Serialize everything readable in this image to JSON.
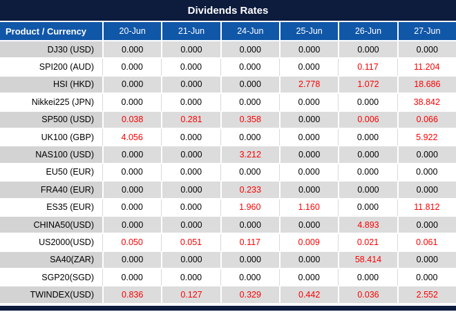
{
  "title": "Dividends Rates",
  "colors": {
    "title_bar_bg": "#0D1B3D",
    "header_bg": "#1157A8",
    "stripe_bg": "#DCDCDC",
    "stripe_product_bg": "#D3D3D3",
    "value_red": "#FA0000",
    "text_black": "#000000"
  },
  "table": {
    "header": {
      "product_label": "Product / Currency",
      "dates": [
        "20-Jun",
        "21-Jun",
        "24-Jun",
        "25-Jun",
        "26-Jun",
        "27-Jun"
      ]
    },
    "rows": [
      {
        "product": "DJ30 (USD)",
        "values": [
          "0.000",
          "0.000",
          "0.000",
          "0.000",
          "0.000",
          "0.000"
        ]
      },
      {
        "product": "SPI200 (AUD)",
        "values": [
          "0.000",
          "0.000",
          "0.000",
          "0.000",
          "0.117",
          "11.204"
        ]
      },
      {
        "product": "HSI (HKD)",
        "values": [
          "0.000",
          "0.000",
          "0.000",
          "2.778",
          "1.072",
          "18.686"
        ]
      },
      {
        "product": "Nikkei225 (JPN)",
        "values": [
          "0.000",
          "0.000",
          "0.000",
          "0.000",
          "0.000",
          "38.842"
        ]
      },
      {
        "product": "SP500 (USD)",
        "values": [
          "0.038",
          "0.281",
          "0.358",
          "0.000",
          "0.006",
          "0.066"
        ]
      },
      {
        "product": "UK100 (GBP)",
        "values": [
          "4.056",
          "0.000",
          "0.000",
          "0.000",
          "0.000",
          "5.922"
        ]
      },
      {
        "product": "NAS100 (USD)",
        "values": [
          "0.000",
          "0.000",
          "3.212",
          "0.000",
          "0.000",
          "0.000"
        ]
      },
      {
        "product": "EU50 (EUR)",
        "values": [
          "0.000",
          "0.000",
          "0.000",
          "0.000",
          "0.000",
          "0.000"
        ]
      },
      {
        "product": "FRA40 (EUR)",
        "values": [
          "0.000",
          "0.000",
          "0.233",
          "0.000",
          "0.000",
          "0.000"
        ]
      },
      {
        "product": "ES35 (EUR)",
        "values": [
          "0.000",
          "0.000",
          "1.960",
          "1.160",
          "0.000",
          "11.812"
        ]
      },
      {
        "product": "CHINA50(USD)",
        "values": [
          "0.000",
          "0.000",
          "0.000",
          "0.000",
          "4.893",
          "0.000"
        ]
      },
      {
        "product": "US2000(USD)",
        "values": [
          "0.050",
          "0.051",
          "0.117",
          "0.009",
          "0.021",
          "0.061"
        ]
      },
      {
        "product": "SA40(ZAR)",
        "values": [
          "0.000",
          "0.000",
          "0.000",
          "0.000",
          "58.414",
          "0.000"
        ]
      },
      {
        "product": "SGP20(SGD)",
        "values": [
          "0.000",
          "0.000",
          "0.000",
          "0.000",
          "0.000",
          "0.000"
        ]
      },
      {
        "product": "TWINDEX(USD)",
        "values": [
          "0.836",
          "0.127",
          "0.329",
          "0.442",
          "0.036",
          "2.552"
        ]
      }
    ]
  },
  "chart_data": {
    "type": "table",
    "title": "Dividends Rates",
    "categories": [
      "20-Jun",
      "21-Jun",
      "24-Jun",
      "25-Jun",
      "26-Jun",
      "27-Jun"
    ],
    "series": [
      {
        "name": "DJ30 (USD)",
        "values": [
          0.0,
          0.0,
          0.0,
          0.0,
          0.0,
          0.0
        ]
      },
      {
        "name": "SPI200 (AUD)",
        "values": [
          0.0,
          0.0,
          0.0,
          0.0,
          0.117,
          11.204
        ]
      },
      {
        "name": "HSI (HKD)",
        "values": [
          0.0,
          0.0,
          0.0,
          2.778,
          1.072,
          18.686
        ]
      },
      {
        "name": "Nikkei225 (JPN)",
        "values": [
          0.0,
          0.0,
          0.0,
          0.0,
          0.0,
          38.842
        ]
      },
      {
        "name": "SP500 (USD)",
        "values": [
          0.038,
          0.281,
          0.358,
          0.0,
          0.006,
          0.066
        ]
      },
      {
        "name": "UK100 (GBP)",
        "values": [
          4.056,
          0.0,
          0.0,
          0.0,
          0.0,
          5.922
        ]
      },
      {
        "name": "NAS100 (USD)",
        "values": [
          0.0,
          0.0,
          3.212,
          0.0,
          0.0,
          0.0
        ]
      },
      {
        "name": "EU50 (EUR)",
        "values": [
          0.0,
          0.0,
          0.0,
          0.0,
          0.0,
          0.0
        ]
      },
      {
        "name": "FRA40 (EUR)",
        "values": [
          0.0,
          0.0,
          0.233,
          0.0,
          0.0,
          0.0
        ]
      },
      {
        "name": "ES35 (EUR)",
        "values": [
          0.0,
          0.0,
          1.96,
          1.16,
          0.0,
          11.812
        ]
      },
      {
        "name": "CHINA50(USD)",
        "values": [
          0.0,
          0.0,
          0.0,
          0.0,
          4.893,
          0.0
        ]
      },
      {
        "name": "US2000(USD)",
        "values": [
          0.05,
          0.051,
          0.117,
          0.009,
          0.021,
          0.061
        ]
      },
      {
        "name": "SA40(ZAR)",
        "values": [
          0.0,
          0.0,
          0.0,
          0.0,
          58.414,
          0.0
        ]
      },
      {
        "name": "SGP20(SGD)",
        "values": [
          0.0,
          0.0,
          0.0,
          0.0,
          0.0,
          0.0
        ]
      },
      {
        "name": "TWINDEX(USD)",
        "values": [
          0.836,
          0.127,
          0.329,
          0.442,
          0.036,
          2.552
        ]
      }
    ],
    "notes": "Zero values rendered black, non-zero values rendered red"
  }
}
